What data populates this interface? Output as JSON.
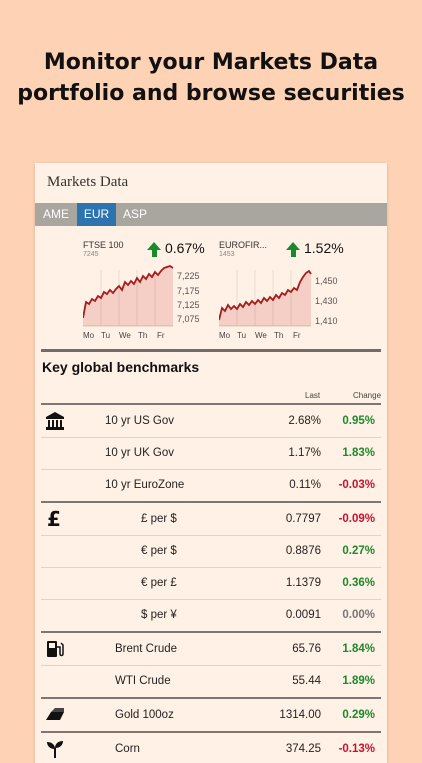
{
  "headline": {
    "line1": "Monitor your Markets Data",
    "line2": "portfolio and browse securities"
  },
  "app": {
    "title": "Markets Data"
  },
  "tabs": [
    {
      "label": "AME"
    },
    {
      "label": "EUR"
    },
    {
      "label": "ASP"
    }
  ],
  "charts": [
    {
      "name": "FTSE 100",
      "value": "7245",
      "change": "0.67%",
      "y_ticks": [
        "7,225",
        "7,175",
        "7,125",
        "7,075"
      ],
      "x_ticks": [
        "Mo",
        "Tu",
        "We",
        "Th",
        "Fr"
      ]
    },
    {
      "name": "EUROFIR...",
      "value": "1453",
      "change": "1.52%",
      "y_ticks": [
        "1,450",
        "1,430",
        "1,410"
      ],
      "x_ticks": [
        "Mo",
        "Tu",
        "We",
        "Th",
        "Fr"
      ]
    }
  ],
  "benchmarks": {
    "title": "Key global benchmarks",
    "col_last": "Last",
    "col_change": "Change",
    "groups": [
      {
        "icon": "bank-icon",
        "rows": [
          {
            "name": "10 yr US Gov",
            "last": "2.68%",
            "change": "0.95%",
            "dir": "up"
          },
          {
            "name": "10 yr UK Gov",
            "last": "1.17%",
            "change": "1.83%",
            "dir": "up"
          },
          {
            "name": "10 yr EuroZone",
            "last": "0.11%",
            "change": "-0.03%",
            "dir": "down"
          }
        ]
      },
      {
        "icon": "pound-icon",
        "rows": [
          {
            "name": "£ per $",
            "last": "0.7797",
            "change": "-0.09%",
            "dir": "down"
          },
          {
            "name": "€ per $",
            "last": "0.8876",
            "change": "0.27%",
            "dir": "up"
          },
          {
            "name": "€ per £",
            "last": "1.1379",
            "change": "0.36%",
            "dir": "up"
          },
          {
            "name": "$ per ¥",
            "last": "0.0091",
            "change": "0.00%",
            "dir": "flat"
          }
        ]
      },
      {
        "icon": "fuel-pump-icon",
        "rows": [
          {
            "name": "Brent Crude",
            "last": "65.76",
            "change": "1.84%",
            "dir": "up"
          },
          {
            "name": "WTI Crude",
            "last": "55.44",
            "change": "1.89%",
            "dir": "up"
          }
        ]
      },
      {
        "icon": "gold-bar-icon",
        "rows": [
          {
            "name": "Gold 100oz",
            "last": "1314.00",
            "change": "0.29%",
            "dir": "up"
          }
        ]
      },
      {
        "icon": "plant-icon",
        "rows": [
          {
            "name": "Corn",
            "last": "374.25",
            "change": "-0.13%",
            "dir": "down"
          }
        ]
      }
    ]
  },
  "colors": {
    "up": "#1A8A2A",
    "down": "#C8102E",
    "flat": "#777777",
    "accent": "#2C73B0",
    "line": "#A61B1B"
  }
}
